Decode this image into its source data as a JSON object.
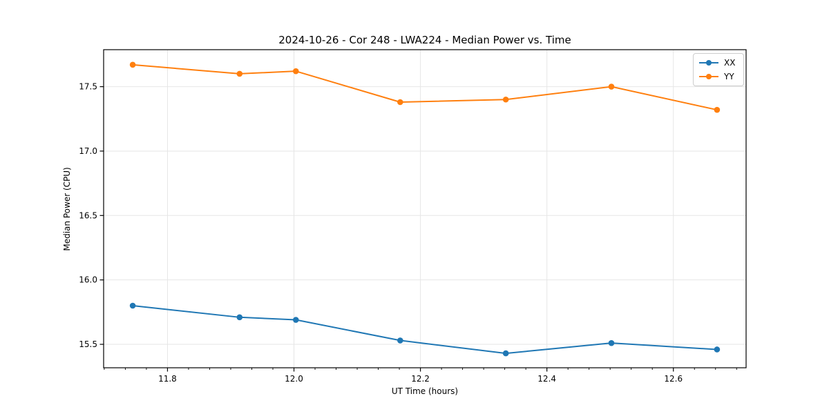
{
  "figure": {
    "background": "#ffffff"
  },
  "chart_data": {
    "type": "line",
    "title": "2024-10-26 - Cor 248 - LWA224 - Median Power vs. Time",
    "xlabel": "UT Time (hours)",
    "ylabel": "Median Power (CPU)",
    "x": [
      11.745,
      11.914,
      12.003,
      12.168,
      12.335,
      12.502,
      12.669
    ],
    "series": [
      {
        "name": "XX",
        "color": "#1f77b4",
        "values": [
          15.8,
          15.71,
          15.69,
          15.53,
          15.43,
          15.51,
          15.46
        ]
      },
      {
        "name": "YY",
        "color": "#ff7f0e",
        "values": [
          17.67,
          17.6,
          17.62,
          17.38,
          17.4,
          17.5,
          17.32
        ]
      }
    ],
    "xlim": [
      11.699,
      12.715
    ],
    "ylim": [
      15.318,
      17.787
    ],
    "x_major_ticks": [
      11.8,
      12.0,
      12.2,
      12.4,
      12.6
    ],
    "x_tick_labels": [
      "11.8",
      "12.0",
      "12.2",
      "12.4",
      "12.6"
    ],
    "x_minor_step": 0.0333333,
    "y_major_ticks": [
      15.5,
      16.0,
      16.5,
      17.0,
      17.5
    ],
    "y_tick_labels": [
      "15.5",
      "16.0",
      "16.5",
      "17.0",
      "17.5"
    ],
    "grid": true,
    "legend_position": "upper right",
    "colors": {
      "grid": "#e6e6e6",
      "spine": "#000000",
      "tick": "#000000",
      "text": "#000000"
    }
  }
}
